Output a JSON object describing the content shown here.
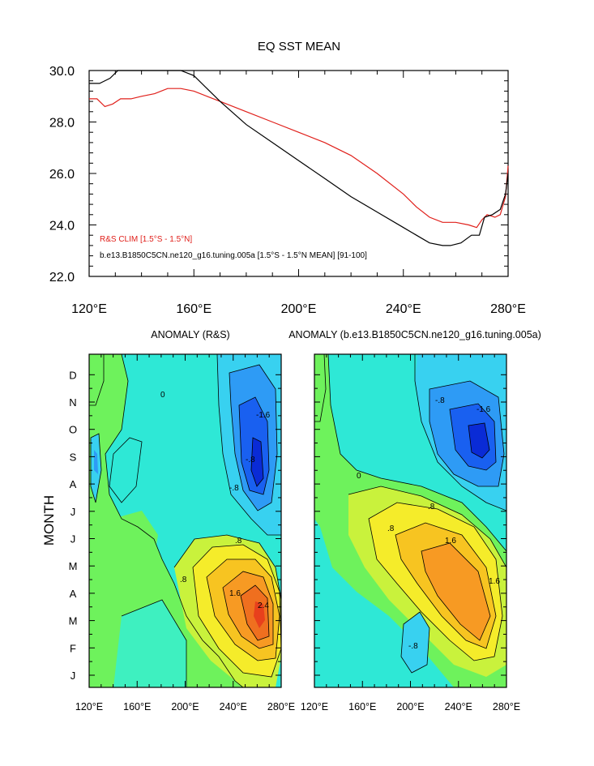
{
  "colors": {
    "obs": "#e0201b",
    "model": "#000000",
    "frame": "#000000",
    "contour": "#000000",
    "fill_levels": [
      "#0a2bd6",
      "#1960f0",
      "#2e9bf5",
      "#38d1f0",
      "#2ee8d6",
      "#3ef0c0",
      "#6ef25c",
      "#c9f23c",
      "#f5ec2a",
      "#f7c421",
      "#f79a23",
      "#ef6f1f",
      "#e8401c"
    ]
  },
  "chart_data": [
    {
      "type": "line",
      "title": "EQ SST MEAN",
      "xlabel": "",
      "ylabel": "",
      "xlim": [
        120,
        280
      ],
      "ylim": [
        22.0,
        30.0
      ],
      "x_ticks": [
        120,
        160,
        200,
        240,
        280
      ],
      "x_tick_labels": [
        "120°E",
        "160°E",
        "200°E",
        "240°E",
        "280°E"
      ],
      "y_tick_labels": [
        "22.0",
        "24.0",
        "26.0",
        "28.0",
        "30.0"
      ],
      "y_ticks": [
        22,
        24,
        26,
        28,
        30
      ],
      "legend_placement": "bottom-left",
      "series": [
        {
          "name": "R&S CLIM [1.5°S - 1.5°N]",
          "color": "#e0201b",
          "x": [
            120,
            123,
            126,
            129,
            132,
            136,
            140,
            145,
            150,
            155,
            160,
            165,
            170,
            175,
            180,
            190,
            200,
            210,
            220,
            230,
            240,
            245,
            250,
            255,
            260,
            265,
            268,
            270,
            272,
            275,
            277,
            279,
            280
          ],
          "y": [
            28.9,
            28.9,
            28.6,
            28.7,
            28.9,
            28.9,
            29.0,
            29.1,
            29.3,
            29.3,
            29.2,
            29.0,
            28.8,
            28.6,
            28.4,
            28.0,
            27.6,
            27.2,
            26.7,
            26.0,
            25.2,
            24.7,
            24.3,
            24.1,
            24.1,
            24.0,
            23.9,
            24.2,
            24.4,
            24.3,
            24.4,
            25.1,
            26.3
          ]
        },
        {
          "name": "b.e13.B1850C5CN.ne120_g16.tuning.005a [1.5°S - 1.5°N MEAN] [91-100]",
          "color": "#000000",
          "x": [
            120,
            124,
            128,
            131,
            135,
            140,
            145,
            150,
            155,
            160,
            165,
            170,
            180,
            190,
            200,
            210,
            220,
            230,
            240,
            245,
            250,
            255,
            258,
            262,
            266,
            269,
            271,
            274,
            277,
            279,
            280
          ],
          "y": [
            29.5,
            29.5,
            29.7,
            30.0,
            30.0,
            30.0,
            30.0,
            30.0,
            30.0,
            29.8,
            29.3,
            28.8,
            27.9,
            27.2,
            26.5,
            25.8,
            25.1,
            24.5,
            23.9,
            23.6,
            23.3,
            23.2,
            23.2,
            23.3,
            23.6,
            23.6,
            24.3,
            24.4,
            24.6,
            25.2,
            26.0
          ]
        }
      ]
    },
    {
      "type": "heatmap",
      "title": "ANOMALY (R&S)",
      "xlabel": "",
      "ylabel": "MONTH",
      "xlim": [
        120,
        280
      ],
      "x_tick_labels": [
        "120°E",
        "160°E",
        "200°E",
        "240°E",
        "280°E"
      ],
      "y_tick_labels": [
        "J",
        "F",
        "M",
        "A",
        "M",
        "J",
        "J",
        "A",
        "S",
        "O",
        "N",
        "D"
      ],
      "contour_interval": 0.4,
      "contour_labels": [
        "-.8",
        "-1.6",
        "-.8",
        ".8",
        "1.6",
        "2.4",
        "0",
        ".8"
      ]
    },
    {
      "type": "heatmap",
      "title": "ANOMALY (b.e13.B1850C5CN.ne120_g16.tuning.005a)",
      "xlabel": "",
      "ylabel": "",
      "xlim": [
        120,
        280
      ],
      "x_tick_labels": [
        "120°E",
        "160°E",
        "200°E",
        "240°E",
        "280°E"
      ],
      "y_tick_labels": [
        "J",
        "F",
        "M",
        "A",
        "M",
        "J",
        "J",
        "A",
        "S",
        "O",
        "N",
        "D"
      ],
      "contour_interval": 0.4,
      "contour_labels": [
        "-.8",
        "-1.6",
        ".8",
        "1.6",
        "-.8",
        "0",
        ".8",
        "1.6"
      ]
    }
  ]
}
